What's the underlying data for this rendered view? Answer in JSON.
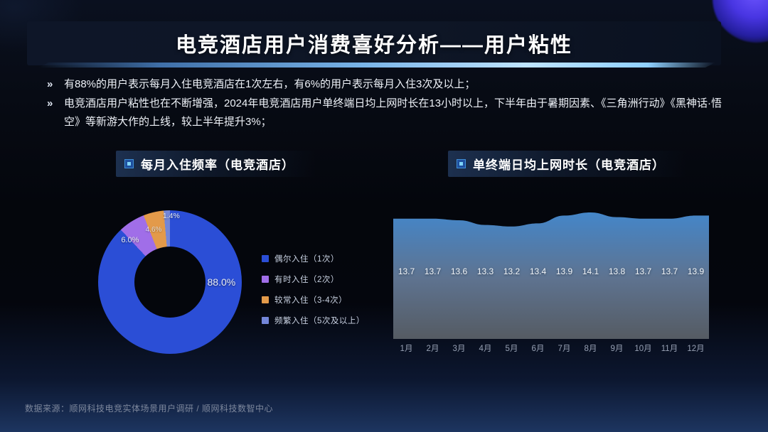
{
  "header": {
    "title": "电竞酒店用户消费喜好分析——用户粘性"
  },
  "bullets": [
    {
      "marker": "»",
      "text": "有88%的用户表示每月入住电竞酒店在1次左右，有6%的用户表示每月入住3次及以上；"
    },
    {
      "marker": "»",
      "text": "电竞酒店用户粘性也在不断增强，2024年电竞酒店用户单终端日均上网时长在13小时以上，下半年由于暑期因素、《三角洲行动》《黑神话·悟空》等新游大作的上线，较上半年提升3%；"
    }
  ],
  "panels": {
    "left_header": "每月入住频率（电竞酒店）",
    "right_header": "单终端日均上网时长（电竞酒店）"
  },
  "chart_data": [
    {
      "type": "pie",
      "subtype": "donut",
      "title": "每月入住频率（电竞酒店）",
      "categories": [
        "偶尔入住（1次）",
        "有时入住（2次）",
        "较常入住（3-4次）",
        "频繁入住（5次及以上）"
      ],
      "values": [
        88.0,
        6.0,
        4.6,
        1.4
      ],
      "labels": [
        "88.0%",
        "6.0%",
        "4.6%",
        "1.4%"
      ],
      "colors": [
        "#2b4ed6",
        "#a06ee8",
        "#e39a4a",
        "#7386d9"
      ],
      "legend_position": "right",
      "start_angle_deg": 0,
      "direction": "clockwise"
    },
    {
      "type": "area",
      "title": "单终端日均上网时长（电竞酒店）",
      "categories": [
        "1月",
        "2月",
        "3月",
        "4月",
        "5月",
        "6月",
        "7月",
        "8月",
        "9月",
        "10月",
        "11月",
        "12月"
      ],
      "values": [
        13.7,
        13.7,
        13.6,
        13.3,
        13.2,
        13.4,
        13.9,
        14.1,
        13.8,
        13.7,
        13.7,
        13.9
      ],
      "data_labels": true,
      "gridlines": false,
      "fill_gradient": [
        "#4486c9",
        "#5e7390",
        "#555b63"
      ],
      "value_range_shown": [
        13.2,
        14.1
      ]
    }
  ],
  "footer": {
    "source": "数据来源：顺网科技电竞实体场景用户调研 / 顺网科技数智中心"
  }
}
